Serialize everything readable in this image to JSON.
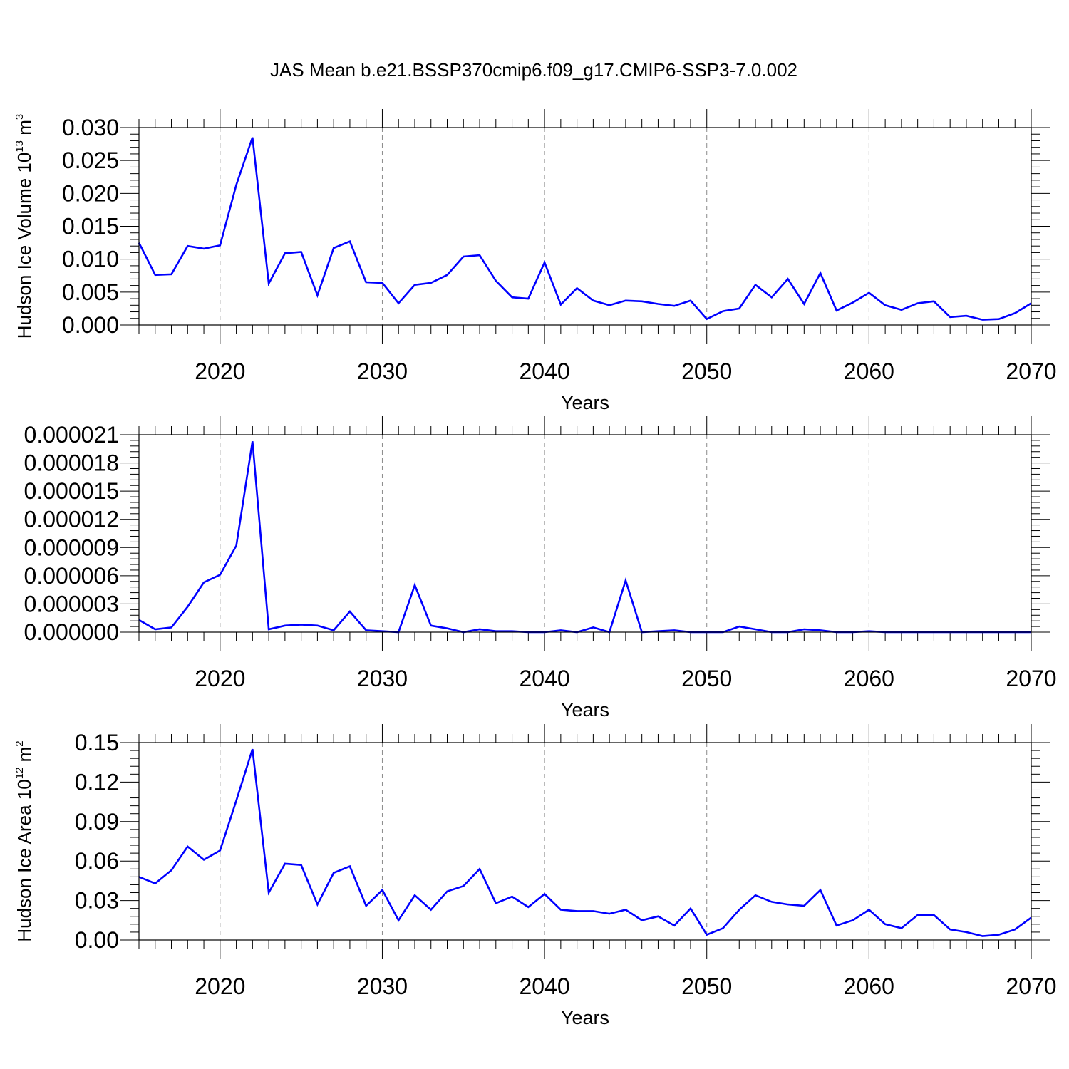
{
  "figure": {
    "title": "JAS Mean b.e21.BSSP370cmip6.f09_g17.CMIP6-SSP3-7.0.002"
  },
  "chart_data": [
    {
      "type": "line",
      "title": "",
      "xlabel": "Years",
      "ylabel": {
        "main": "Hudson Ice Volume 10",
        "exp": "13",
        "unit": " m",
        "unit_exp": "3"
      },
      "xlim": [
        2015,
        2070
      ],
      "ylim": [
        0,
        0.03
      ],
      "xticks": [
        2020,
        2030,
        2040,
        2050,
        2060,
        2070
      ],
      "xtick_labels": [
        "2020",
        "2030",
        "2040",
        "2050",
        "2060",
        "2070"
      ],
      "yticks": [
        0,
        0.005,
        0.01,
        0.015,
        0.02,
        0.025,
        0.03
      ],
      "ytick_labels": [
        "0.000",
        "0.005",
        "0.010",
        "0.015",
        "0.020",
        "0.025",
        "0.030"
      ],
      "grid": "vertical dashed at major x ticks",
      "color": "#0000ff",
      "x_start": 2015,
      "values": [
        0.0125,
        0.0076,
        0.0077,
        0.012,
        0.0116,
        0.0121,
        0.0213,
        0.0285,
        0.0063,
        0.0109,
        0.0111,
        0.0045,
        0.0117,
        0.0127,
        0.0065,
        0.0064,
        0.0033,
        0.0061,
        0.0064,
        0.0076,
        0.0104,
        0.0106,
        0.0067,
        0.0042,
        0.004,
        0.0095,
        0.0031,
        0.0056,
        0.0037,
        0.003,
        0.0037,
        0.0036,
        0.0032,
        0.0029,
        0.0037,
        0.0009,
        0.0021,
        0.0025,
        0.0061,
        0.0042,
        0.007,
        0.0032,
        0.0079,
        0.0022,
        0.0034,
        0.0049,
        0.003,
        0.0023,
        0.0033,
        0.0036,
        0.0012,
        0.0014,
        0.0008,
        0.0009,
        0.0018,
        0.0033
      ]
    },
    {
      "type": "line",
      "title": "",
      "xlabel": "Years",
      "ylabel": null,
      "xlim": [
        2015,
        2070
      ],
      "ylim": [
        0,
        2.1e-05
      ],
      "xticks": [
        2020,
        2030,
        2040,
        2050,
        2060,
        2070
      ],
      "xtick_labels": [
        "2020",
        "2030",
        "2040",
        "2050",
        "2060",
        "2070"
      ],
      "yticks": [
        0,
        3e-06,
        6e-06,
        9e-06,
        1.2e-05,
        1.5e-05,
        1.8e-05,
        2.1e-05
      ],
      "ytick_labels": [
        "0.000000",
        "0.000003",
        "0.000006",
        "0.000009",
        "0.000012",
        "0.000015",
        "0.000018",
        "0.000021"
      ],
      "grid": "vertical dashed at major x ticks",
      "color": "#0000ff",
      "x_start": 2015,
      "values": [
        1.3e-06,
        3e-07,
        5e-07,
        2.7e-06,
        5.3e-06,
        6.1e-06,
        9.2e-06,
        2.03e-05,
        3e-07,
        7e-07,
        8e-07,
        7e-07,
        2e-07,
        2.2e-06,
        2e-07,
        1e-07,
        0.0,
        5e-06,
        7e-07,
        4e-07,
        0.0,
        3e-07,
        1e-07,
        1e-07,
        0.0,
        0.0,
        2e-07,
        0.0,
        5e-07,
        0.0,
        5.5e-06,
        0.0,
        1e-07,
        2e-07,
        0.0,
        0.0,
        0.0,
        6e-07,
        3e-07,
        0.0,
        0.0,
        3e-07,
        2e-07,
        0.0,
        0.0,
        1e-07,
        0.0,
        0.0,
        0.0,
        0.0,
        0.0,
        0.0,
        0.0,
        0.0,
        0.0,
        0.0
      ]
    },
    {
      "type": "line",
      "title": "",
      "xlabel": "Years",
      "ylabel": {
        "main": "Hudson Ice Area 10",
        "exp": "12",
        "unit": " m",
        "unit_exp": "2"
      },
      "xlim": [
        2015,
        2070
      ],
      "ylim": [
        0,
        0.15
      ],
      "xticks": [
        2020,
        2030,
        2040,
        2050,
        2060,
        2070
      ],
      "xtick_labels": [
        "2020",
        "2030",
        "2040",
        "2050",
        "2060",
        "2070"
      ],
      "yticks": [
        0,
        0.03,
        0.06,
        0.09,
        0.12,
        0.15
      ],
      "ytick_labels": [
        "0.00",
        "0.03",
        "0.06",
        "0.09",
        "0.12",
        "0.15"
      ],
      "grid": "vertical dashed at major x ticks",
      "color": "#0000ff",
      "x_start": 2015,
      "values": [
        0.048,
        0.043,
        0.053,
        0.071,
        0.061,
        0.068,
        0.106,
        0.145,
        0.036,
        0.058,
        0.057,
        0.027,
        0.051,
        0.056,
        0.026,
        0.038,
        0.015,
        0.034,
        0.023,
        0.037,
        0.041,
        0.054,
        0.028,
        0.033,
        0.025,
        0.035,
        0.023,
        0.022,
        0.022,
        0.02,
        0.023,
        0.015,
        0.018,
        0.011,
        0.024,
        0.004,
        0.009,
        0.023,
        0.034,
        0.029,
        0.027,
        0.026,
        0.038,
        0.011,
        0.015,
        0.023,
        0.012,
        0.009,
        0.019,
        0.019,
        0.008,
        0.006,
        0.003,
        0.004,
        0.008,
        0.017
      ]
    }
  ]
}
